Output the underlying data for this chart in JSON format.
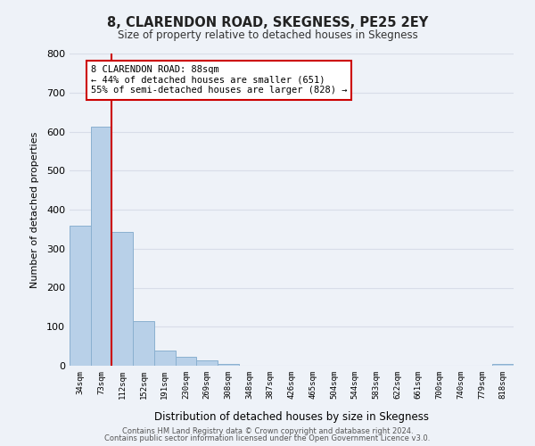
{
  "title": "8, CLARENDON ROAD, SKEGNESS, PE25 2EY",
  "subtitle": "Size of property relative to detached houses in Skegness",
  "xlabel": "Distribution of detached houses by size in Skegness",
  "ylabel": "Number of detached properties",
  "bar_labels": [
    "34sqm",
    "73sqm",
    "112sqm",
    "152sqm",
    "191sqm",
    "230sqm",
    "269sqm",
    "308sqm",
    "348sqm",
    "387sqm",
    "426sqm",
    "465sqm",
    "504sqm",
    "544sqm",
    "583sqm",
    "622sqm",
    "661sqm",
    "700sqm",
    "740sqm",
    "779sqm",
    "818sqm"
  ],
  "bar_heights": [
    358,
    612,
    343,
    114,
    40,
    22,
    13,
    5,
    0,
    0,
    0,
    0,
    0,
    0,
    0,
    0,
    0,
    0,
    0,
    0,
    5
  ],
  "bar_color": "#b8d0e8",
  "bar_edge_color": "#8ab0d0",
  "property_line_x": 1.5,
  "property_line_color": "#cc0000",
  "annotation_line1": "8 CLARENDON ROAD: 88sqm",
  "annotation_line2": "← 44% of detached houses are smaller (651)",
  "annotation_line3": "55% of semi-detached houses are larger (828) →",
  "annotation_box_color": "#ffffff",
  "annotation_box_edgecolor": "#cc0000",
  "ylim": [
    0,
    800
  ],
  "yticks": [
    0,
    100,
    200,
    300,
    400,
    500,
    600,
    700,
    800
  ],
  "grid_color": "#d8dde8",
  "bg_color": "#eef2f8",
  "footer_line1": "Contains HM Land Registry data © Crown copyright and database right 2024.",
  "footer_line2": "Contains public sector information licensed under the Open Government Licence v3.0."
}
